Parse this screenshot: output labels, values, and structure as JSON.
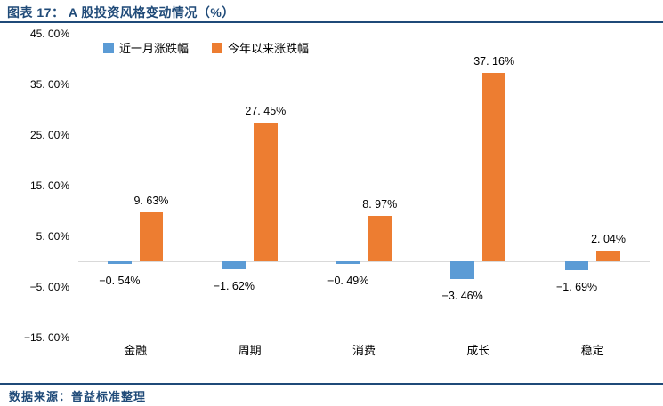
{
  "title": "图表 17：  A 股投资风格变动情况（%）",
  "source": "数据来源：普益标准整理",
  "colors": {
    "navy": "#1F4A78",
    "series_blue": "#5B9BD5",
    "series_orange": "#ED7D31",
    "axis_line": "#D9D9D9"
  },
  "chart_data": {
    "type": "bar",
    "title": "A 股投资风格变动情况（%）",
    "categories": [
      "金融",
      "周期",
      "消费",
      "成长",
      "稳定"
    ],
    "series": [
      {
        "key": "one-month",
        "name": "近一月涨跌幅",
        "color": "#5B9BD5",
        "values": [
          -0.54,
          -1.62,
          -0.49,
          -3.46,
          -1.69
        ],
        "labels": [
          "−0. 54%",
          "−1. 62%",
          "−0. 49%",
          "−3. 46%",
          "−1. 69%"
        ]
      },
      {
        "key": "ytd",
        "name": "今年以来涨跌幅",
        "color": "#ED7D31",
        "values": [
          9.63,
          27.45,
          8.97,
          37.16,
          2.04
        ],
        "labels": [
          "9. 63%",
          "27. 45%",
          "8. 97%",
          "37. 16%",
          "2. 04%"
        ]
      }
    ],
    "y_ticks": {
      "values": [
        45,
        35,
        25,
        15,
        5,
        -5,
        -15
      ],
      "labels": [
        "45. 00%",
        "35. 00%",
        "25. 00%",
        "15. 00%",
        "5. 00%",
        "−5. 00%",
        "−15. 00%"
      ]
    },
    "ylim": [
      -15,
      45
    ],
    "grid": false,
    "legend_position": "top",
    "xlabel": "",
    "ylabel": ""
  }
}
